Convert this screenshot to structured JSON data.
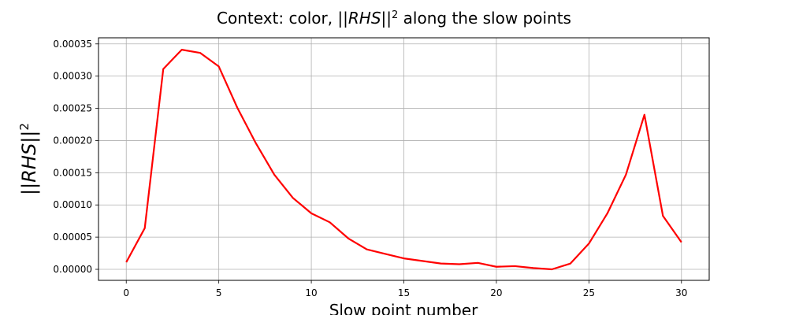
{
  "chart_data": {
    "type": "line",
    "title_prefix": "Context: color, ||",
    "title_math": "RHS",
    "title_suffix_pre": "||",
    "title_exponent": "2",
    "title_suffix": " along the slow points",
    "xlabel": "Slow point number",
    "ylabel_pre": "||",
    "ylabel_math": "RHS",
    "ylabel_post": "||",
    "ylabel_exponent": "2",
    "xlim": [
      -1.5,
      31.5
    ],
    "ylim": [
      -1.71e-05,
      0.0003595
    ],
    "x_ticks": [
      0,
      5,
      10,
      15,
      20,
      25,
      30
    ],
    "x_tick_labels": [
      "0",
      "5",
      "10",
      "15",
      "20",
      "25",
      "30"
    ],
    "y_ticks": [
      0,
      5e-05,
      0.0001,
      0.00015,
      0.0002,
      0.00025,
      0.0003,
      0.00035
    ],
    "y_tick_labels": [
      "0.00000",
      "0.00005",
      "0.00010",
      "0.00015",
      "0.00020",
      "0.00025",
      "0.00030",
      "0.00035"
    ],
    "grid": true,
    "line_color": "#ff0000",
    "series": [
      {
        "x": [
          0,
          1,
          2,
          3,
          4,
          5,
          6,
          7,
          8,
          9,
          10,
          11,
          12,
          13,
          14,
          15,
          16,
          17,
          18,
          19,
          20,
          21,
          22,
          23,
          24,
          25,
          26,
          27,
          28,
          29,
          30
        ],
        "values": [
          1.1e-05,
          6.4e-05,
          0.000311,
          0.000341,
          0.000336,
          0.000315,
          0.000251,
          0.000196,
          0.000147,
          0.000111,
          8.7e-05,
          7.3e-05,
          4.8e-05,
          3.1e-05,
          2.4e-05,
          1.7e-05,
          1.3e-05,
          9e-06,
          8e-06,
          1e-05,
          4e-06,
          5e-06,
          2e-06,
          0.0,
          9e-06,
          4e-05,
          8.7e-05,
          0.000147,
          0.00024,
          8.3e-05,
          4.2e-05
        ]
      }
    ]
  }
}
